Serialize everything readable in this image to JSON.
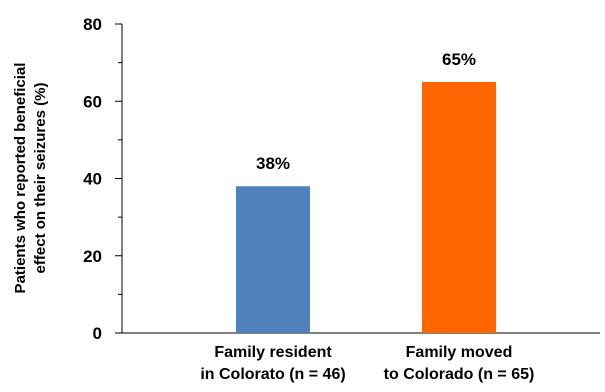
{
  "chart_data": {
    "type": "bar",
    "categories": [
      [
        "Family resident",
        "in Colorato (n = 46)"
      ],
      [
        "Family moved",
        "to Colorado (n = 65)"
      ]
    ],
    "values": [
      38,
      65
    ],
    "data_labels": [
      "38%",
      "65%"
    ],
    "bar_colors": [
      "#4F81BD",
      "#FF6600"
    ],
    "title": "",
    "xlabel": "",
    "ylabel": [
      "Patients who reported beneficial",
      "effect on their  seizures (%)"
    ],
    "ylim": [
      0,
      80
    ],
    "yticks": [
      0,
      20,
      40,
      60,
      80
    ],
    "grid": false,
    "legend": "none"
  }
}
